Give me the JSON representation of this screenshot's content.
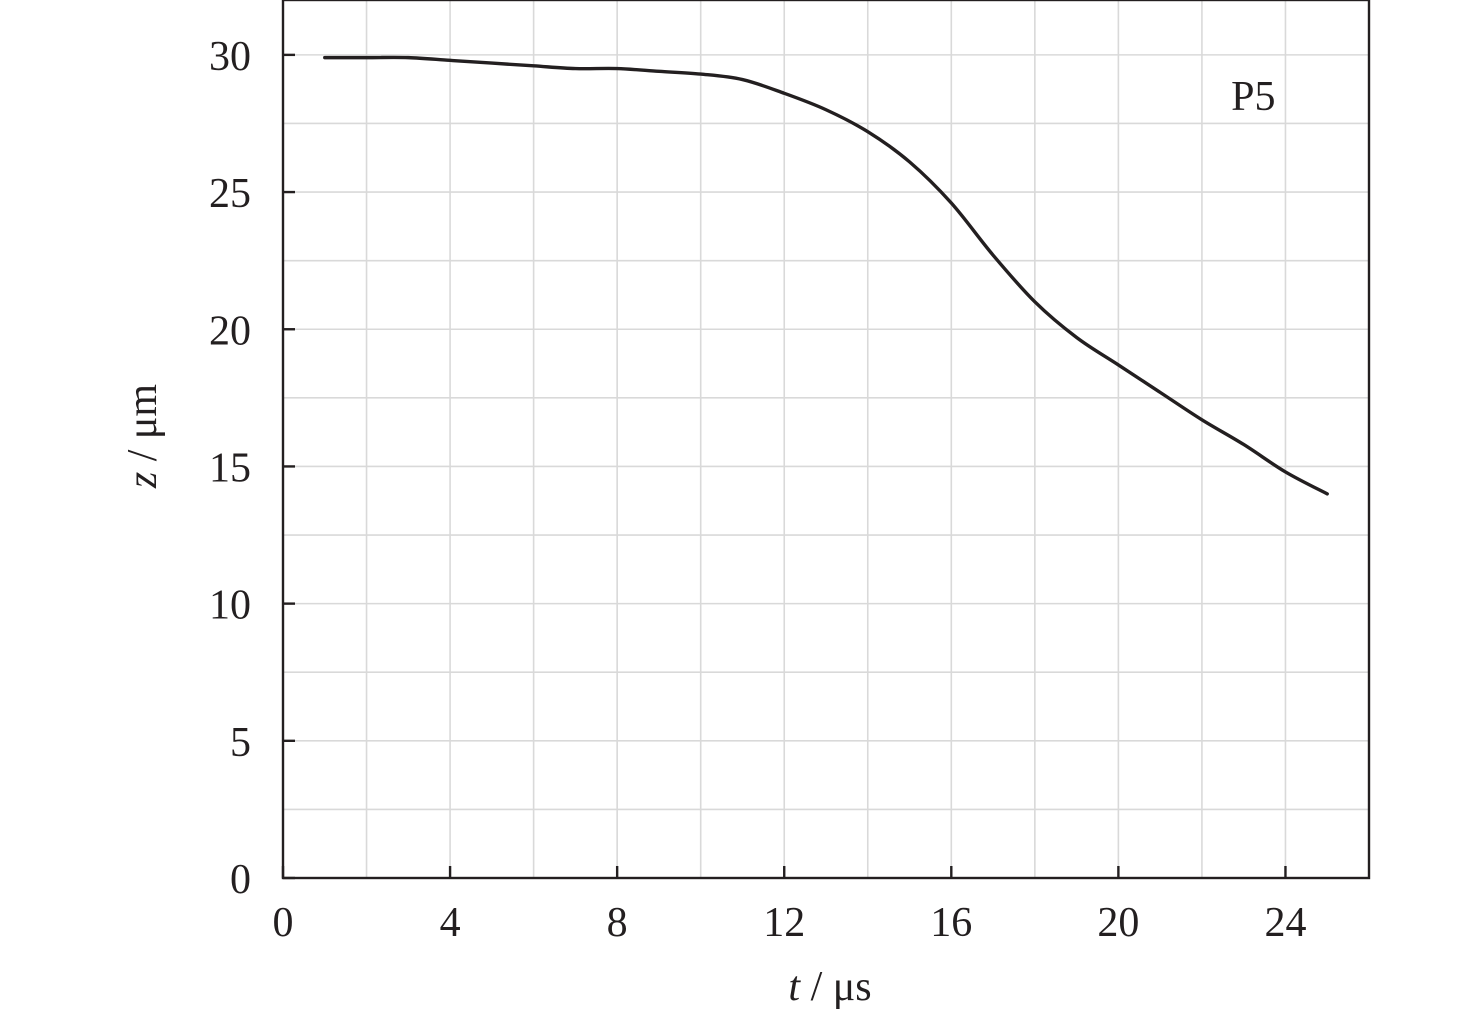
{
  "chart_data": {
    "type": "line",
    "xlabel_var": "t",
    "xlabel_unit": " / μs",
    "ylabel_var": "z",
    "ylabel_unit": " / μm",
    "xlim": [
      0,
      26
    ],
    "ylim": [
      0,
      32
    ],
    "x_ticks": [
      0,
      4,
      8,
      12,
      16,
      20,
      24
    ],
    "y_ticks": [
      0,
      5,
      10,
      15,
      20,
      25,
      30
    ],
    "x_grid_step": 2,
    "y_grid_step": 2.5,
    "grid": true,
    "annotation": {
      "text": "P5",
      "x": 22.7,
      "y": 28
    },
    "series": [
      {
        "x": [
          1,
          2,
          3,
          4,
          5,
          6,
          7,
          8,
          9,
          10,
          11,
          12,
          13,
          14,
          15,
          16,
          17,
          18,
          19,
          20,
          21,
          22,
          23,
          24,
          25
        ],
        "y": [
          29.9,
          29.9,
          29.9,
          29.8,
          29.7,
          29.6,
          29.5,
          29.5,
          29.4,
          29.3,
          29.1,
          28.6,
          28.0,
          27.2,
          26.1,
          24.6,
          22.7,
          21.0,
          19.7,
          18.7,
          17.7,
          16.7,
          15.8,
          14.8,
          14.0
        ]
      }
    ]
  }
}
